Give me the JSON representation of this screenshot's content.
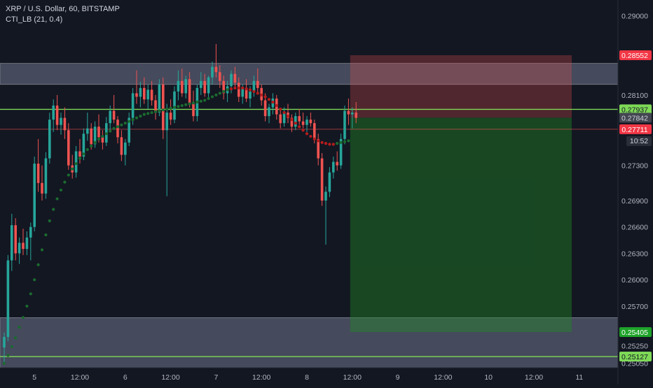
{
  "legend": {
    "title": "XRP / U.S. Dollar, 60, BITSTAMP",
    "indicator": "CTI_LB (21, 0.4)"
  },
  "colors": {
    "background": "#131722",
    "up": "#26a69a",
    "down": "#ef5350",
    "zone": "#4f5466",
    "level": "#7ed957",
    "stop": "#ef5350",
    "target": "#1f8b24",
    "axis_text": "#b2b5be"
  },
  "chart_data": {
    "type": "candlestick",
    "symbol": "XRP / U.S. Dollar",
    "interval": "60",
    "exchange": "BITSTAMP",
    "ylim": [
      0.25,
      0.2918
    ],
    "y_ticks": [
      "0.29000",
      "0.28100",
      "0.27300",
      "0.26900",
      "0.26600",
      "0.26300",
      "0.26000",
      "0.25700",
      "0.25250",
      "0.25050"
    ],
    "x_ticks": [
      {
        "label": "5",
        "bar": 8
      },
      {
        "label": "12:00",
        "bar": 20
      },
      {
        "label": "6",
        "bar": 32
      },
      {
        "label": "12:00",
        "bar": 44
      },
      {
        "label": "7",
        "bar": 56
      },
      {
        "label": "12:00",
        "bar": 68
      },
      {
        "label": "8",
        "bar": 80
      },
      {
        "label": "12:00",
        "bar": 92
      },
      {
        "label": "9",
        "bar": 104
      },
      {
        "label": "12:00",
        "bar": 116
      },
      {
        "label": "10",
        "bar": 128
      },
      {
        "label": "12:00",
        "bar": 140
      },
      {
        "label": "11",
        "bar": 152
      }
    ],
    "price_labels": [
      {
        "label": "0.28552",
        "value": 0.28552,
        "color": "#f23645",
        "text_color": "#ffffff"
      },
      {
        "label": "0.27937",
        "value": 0.27937,
        "color": "#7ed957",
        "text_color": "#131722"
      },
      {
        "label": "0.27842",
        "value": 0.27842,
        "color": "#434651",
        "text_color": "#d1d4dc"
      },
      {
        "label": "0.27711",
        "value": 0.27711,
        "color": "#f23645",
        "text_color": "#ffffff"
      },
      {
        "label": "0.25405",
        "value": 0.25405,
        "color": "#1fa32a",
        "text_color": "#ffffff"
      },
      {
        "label": "0.25127",
        "value": 0.25127,
        "color": "#7ed957",
        "text_color": "#131722"
      }
    ],
    "countdown": "10:52",
    "hidden_tick": "0.25400",
    "zones": [
      {
        "name": "resistance-zone",
        "top": 0.2846,
        "bottom": 0.2822
      },
      {
        "name": "support-zone",
        "top": 0.2557,
        "bottom": 0.25
      }
    ],
    "levels": [
      {
        "name": "resistance-level",
        "value": 0.27937
      },
      {
        "name": "support-level",
        "value": 0.25127
      }
    ],
    "entry_line": 0.27711,
    "position": {
      "start_bar": 92,
      "end_bar": 150,
      "entry": 0.27842,
      "stop": 0.28552,
      "target": 0.25405
    },
    "candles": [
      [
        0.2523,
        0.254,
        0.2504,
        0.2535
      ],
      [
        0.2535,
        0.2628,
        0.253,
        0.2622
      ],
      [
        0.2622,
        0.2675,
        0.261,
        0.2662
      ],
      [
        0.2662,
        0.267,
        0.2622,
        0.263
      ],
      [
        0.263,
        0.2648,
        0.2618,
        0.2642
      ],
      [
        0.2642,
        0.2658,
        0.2628,
        0.2635
      ],
      [
        0.2635,
        0.2655,
        0.2628,
        0.2648
      ],
      [
        0.2648,
        0.2665,
        0.2622,
        0.266
      ],
      [
        0.266,
        0.274,
        0.2655,
        0.2732
      ],
      [
        0.2732,
        0.276,
        0.27,
        0.271
      ],
      [
        0.271,
        0.273,
        0.269,
        0.2698
      ],
      [
        0.2698,
        0.2745,
        0.2692,
        0.2738
      ],
      [
        0.2738,
        0.279,
        0.2732,
        0.2782
      ],
      [
        0.2782,
        0.2805,
        0.2768,
        0.2798
      ],
      [
        0.2798,
        0.281,
        0.277,
        0.2776
      ],
      [
        0.2776,
        0.279,
        0.2765,
        0.2784
      ],
      [
        0.2784,
        0.2796,
        0.276,
        0.277
      ],
      [
        0.277,
        0.2778,
        0.2725,
        0.273
      ],
      [
        0.273,
        0.2742,
        0.2715,
        0.2722
      ],
      [
        0.2722,
        0.2752,
        0.2716,
        0.2746
      ],
      [
        0.2746,
        0.276,
        0.2732,
        0.274
      ],
      [
        0.274,
        0.2772,
        0.2736,
        0.2766
      ],
      [
        0.2766,
        0.279,
        0.2758,
        0.2772
      ],
      [
        0.2772,
        0.2778,
        0.2748,
        0.2754
      ],
      [
        0.2754,
        0.278,
        0.275,
        0.2774
      ],
      [
        0.2774,
        0.2788,
        0.2756,
        0.2762
      ],
      [
        0.2762,
        0.277,
        0.2748,
        0.2756
      ],
      [
        0.2756,
        0.2785,
        0.2752,
        0.2778
      ],
      [
        0.2778,
        0.2798,
        0.277,
        0.2792
      ],
      [
        0.2792,
        0.281,
        0.2778,
        0.2782
      ],
      [
        0.2782,
        0.2786,
        0.2755,
        0.2762
      ],
      [
        0.2762,
        0.277,
        0.2735,
        0.2742
      ],
      [
        0.2742,
        0.276,
        0.273,
        0.2756
      ],
      [
        0.2756,
        0.279,
        0.2752,
        0.2784
      ],
      [
        0.2784,
        0.2818,
        0.2776,
        0.2812
      ],
      [
        0.2812,
        0.2838,
        0.28,
        0.2808
      ],
      [
        0.2808,
        0.2825,
        0.2796,
        0.2818
      ],
      [
        0.2818,
        0.283,
        0.28,
        0.2805
      ],
      [
        0.2805,
        0.2822,
        0.2794,
        0.2816
      ],
      [
        0.2816,
        0.2826,
        0.2798,
        0.2804
      ],
      [
        0.2804,
        0.281,
        0.2782,
        0.279
      ],
      [
        0.279,
        0.2828,
        0.2786,
        0.2822
      ],
      [
        0.2822,
        0.283,
        0.276,
        0.277
      ],
      [
        0.277,
        0.28,
        0.2695,
        0.279
      ],
      [
        0.279,
        0.2805,
        0.2776,
        0.2782
      ],
      [
        0.2782,
        0.282,
        0.2778,
        0.2814
      ],
      [
        0.2814,
        0.2838,
        0.2804,
        0.2826
      ],
      [
        0.2826,
        0.284,
        0.2808,
        0.2812
      ],
      [
        0.2812,
        0.2832,
        0.2806,
        0.2828
      ],
      [
        0.2828,
        0.2836,
        0.2796,
        0.28
      ],
      [
        0.28,
        0.2815,
        0.278,
        0.2786
      ],
      [
        0.2786,
        0.2822,
        0.278,
        0.2818
      ],
      [
        0.2818,
        0.2836,
        0.281,
        0.2826
      ],
      [
        0.2826,
        0.2834,
        0.2808,
        0.2812
      ],
      [
        0.2812,
        0.2832,
        0.2806,
        0.283
      ],
      [
        0.283,
        0.2848,
        0.2822,
        0.2842
      ],
      [
        0.2842,
        0.2868,
        0.283,
        0.2836
      ],
      [
        0.2836,
        0.2844,
        0.2818,
        0.2826
      ],
      [
        0.2826,
        0.2832,
        0.2805,
        0.2812
      ],
      [
        0.2812,
        0.2826,
        0.2802,
        0.282
      ],
      [
        0.282,
        0.2838,
        0.2812,
        0.2834
      ],
      [
        0.2834,
        0.2842,
        0.2818,
        0.2824
      ],
      [
        0.2824,
        0.283,
        0.2802,
        0.2808
      ],
      [
        0.2808,
        0.2822,
        0.28,
        0.2818
      ],
      [
        0.2818,
        0.2828,
        0.2802,
        0.2806
      ],
      [
        0.2806,
        0.282,
        0.2796,
        0.2814
      ],
      [
        0.2814,
        0.2832,
        0.2808,
        0.2826
      ],
      [
        0.2826,
        0.284,
        0.2812,
        0.2818
      ],
      [
        0.2818,
        0.2822,
        0.2798,
        0.2804
      ],
      [
        0.2804,
        0.2812,
        0.278,
        0.2786
      ],
      [
        0.2786,
        0.28,
        0.2778,
        0.2796
      ],
      [
        0.2796,
        0.2812,
        0.2788,
        0.2806
      ],
      [
        0.2806,
        0.281,
        0.2782,
        0.2788
      ],
      [
        0.2788,
        0.2794,
        0.2772,
        0.2778
      ],
      [
        0.2778,
        0.2796,
        0.2774,
        0.279
      ],
      [
        0.279,
        0.28,
        0.2778,
        0.2784
      ],
      [
        0.2784,
        0.2788,
        0.2768,
        0.2774
      ],
      [
        0.2774,
        0.279,
        0.277,
        0.2786
      ],
      [
        0.2786,
        0.2794,
        0.2776,
        0.278
      ],
      [
        0.278,
        0.279,
        0.2772,
        0.2776
      ],
      [
        0.2776,
        0.2786,
        0.2768,
        0.2782
      ],
      [
        0.2782,
        0.279,
        0.2774,
        0.2778
      ],
      [
        0.2778,
        0.2782,
        0.2755,
        0.276
      ],
      [
        0.276,
        0.2766,
        0.273,
        0.2738
      ],
      [
        0.2738,
        0.2744,
        0.2684,
        0.269
      ],
      [
        0.269,
        0.2706,
        0.264,
        0.27
      ],
      [
        0.27,
        0.2728,
        0.2694,
        0.2722
      ],
      [
        0.2722,
        0.274,
        0.2715,
        0.2734
      ],
      [
        0.2734,
        0.2746,
        0.2724,
        0.273
      ],
      [
        0.273,
        0.2766,
        0.2726,
        0.276
      ],
      [
        0.276,
        0.2798,
        0.2754,
        0.2792
      ],
      [
        0.2792,
        0.2806,
        0.2776,
        0.2788
      ],
      [
        0.2788,
        0.2796,
        0.2772,
        0.279
      ],
      [
        0.279,
        0.2802,
        0.2778,
        0.2784
      ]
    ],
    "indicator": {
      "name": "CTI_LB (21, 0.4)",
      "points": [
        [
          0,
          0.2505,
          "up"
        ],
        [
          1,
          0.2514,
          "up"
        ],
        [
          2,
          0.2524,
          "up"
        ],
        [
          3,
          0.2534,
          "up"
        ],
        [
          4,
          0.2546,
          "up"
        ],
        [
          5,
          0.2557,
          "up"
        ],
        [
          6,
          0.257,
          "up"
        ],
        [
          7,
          0.2584,
          "up"
        ],
        [
          8,
          0.26,
          "up"
        ],
        [
          9,
          0.2617,
          "up"
        ],
        [
          10,
          0.2634,
          "up"
        ],
        [
          11,
          0.2651,
          "up"
        ],
        [
          12,
          0.2667,
          "up"
        ],
        [
          13,
          0.268,
          "up"
        ],
        [
          14,
          0.2692,
          "up"
        ],
        [
          15,
          0.2702,
          "up"
        ],
        [
          16,
          0.2711,
          "up"
        ],
        [
          17,
          0.2719,
          "up"
        ],
        [
          18,
          0.2726,
          "up"
        ],
        [
          19,
          0.2732,
          "up"
        ],
        [
          20,
          0.2738,
          "up"
        ],
        [
          21,
          0.2743,
          "up"
        ],
        [
          22,
          0.2748,
          "up"
        ],
        [
          23,
          0.2752,
          "up"
        ],
        [
          24,
          0.2756,
          "up"
        ],
        [
          25,
          0.276,
          "up"
        ],
        [
          26,
          0.2763,
          "up"
        ],
        [
          27,
          0.2766,
          "up"
        ],
        [
          28,
          0.2769,
          "up"
        ],
        [
          29,
          0.2772,
          "up"
        ],
        [
          30,
          0.2774,
          "up"
        ],
        [
          31,
          0.2776,
          "up"
        ],
        [
          32,
          0.2778,
          "up"
        ],
        [
          33,
          0.278,
          "up"
        ],
        [
          34,
          0.2782,
          "up"
        ],
        [
          35,
          0.2784,
          "up"
        ],
        [
          36,
          0.2786,
          "up"
        ],
        [
          37,
          0.2788,
          "up"
        ],
        [
          38,
          0.2789,
          "up"
        ],
        [
          39,
          0.279,
          "up"
        ],
        [
          40,
          0.2791,
          "up"
        ],
        [
          41,
          0.2792,
          "up"
        ],
        [
          42,
          0.2793,
          "up"
        ],
        [
          43,
          0.2794,
          "up"
        ],
        [
          44,
          0.2795,
          "up"
        ],
        [
          45,
          0.2796,
          "up"
        ],
        [
          46,
          0.2797,
          "up"
        ],
        [
          47,
          0.2798,
          "up"
        ],
        [
          48,
          0.2799,
          "up"
        ],
        [
          49,
          0.28,
          "up"
        ],
        [
          50,
          0.2801,
          "up"
        ],
        [
          51,
          0.2802,
          "up"
        ],
        [
          52,
          0.2803,
          "up"
        ],
        [
          53,
          0.2804,
          "up"
        ],
        [
          54,
          0.2806,
          "up"
        ],
        [
          55,
          0.2808,
          "up"
        ],
        [
          56,
          0.281,
          "up"
        ],
        [
          57,
          0.2812,
          "up"
        ],
        [
          58,
          0.2814,
          "up"
        ],
        [
          59,
          0.2816,
          "up"
        ],
        [
          60,
          0.2817,
          "down"
        ],
        [
          61,
          0.2818,
          "down"
        ],
        [
          62,
          0.2818,
          "down"
        ],
        [
          63,
          0.2818,
          "down"
        ],
        [
          64,
          0.2817,
          "down"
        ],
        [
          65,
          0.2816,
          "down"
        ],
        [
          66,
          0.2814,
          "down"
        ],
        [
          67,
          0.2812,
          "down"
        ],
        [
          68,
          0.281,
          "down"
        ],
        [
          69,
          0.2808,
          "down"
        ],
        [
          70,
          0.2805,
          "down"
        ],
        [
          71,
          0.2802,
          "down"
        ],
        [
          72,
          0.2798,
          "down"
        ],
        [
          73,
          0.2794,
          "down"
        ],
        [
          74,
          0.279,
          "down"
        ],
        [
          75,
          0.2786,
          "down"
        ],
        [
          76,
          0.2782,
          "down"
        ],
        [
          77,
          0.2778,
          "down"
        ],
        [
          78,
          0.2774,
          "down"
        ],
        [
          79,
          0.277,
          "down"
        ],
        [
          80,
          0.2766,
          "down"
        ],
        [
          81,
          0.2763,
          "down"
        ],
        [
          82,
          0.276,
          "down"
        ],
        [
          83,
          0.2758,
          "down"
        ],
        [
          84,
          0.2756,
          "down"
        ],
        [
          85,
          0.2755,
          "down"
        ],
        [
          86,
          0.2754,
          "down"
        ],
        [
          87,
          0.2754,
          "down"
        ],
        [
          88,
          0.2755,
          "up"
        ],
        [
          89,
          0.2756,
          "up"
        ],
        [
          90,
          0.2757,
          "up"
        ],
        [
          91,
          0.2758,
          "up"
        ]
      ]
    }
  }
}
